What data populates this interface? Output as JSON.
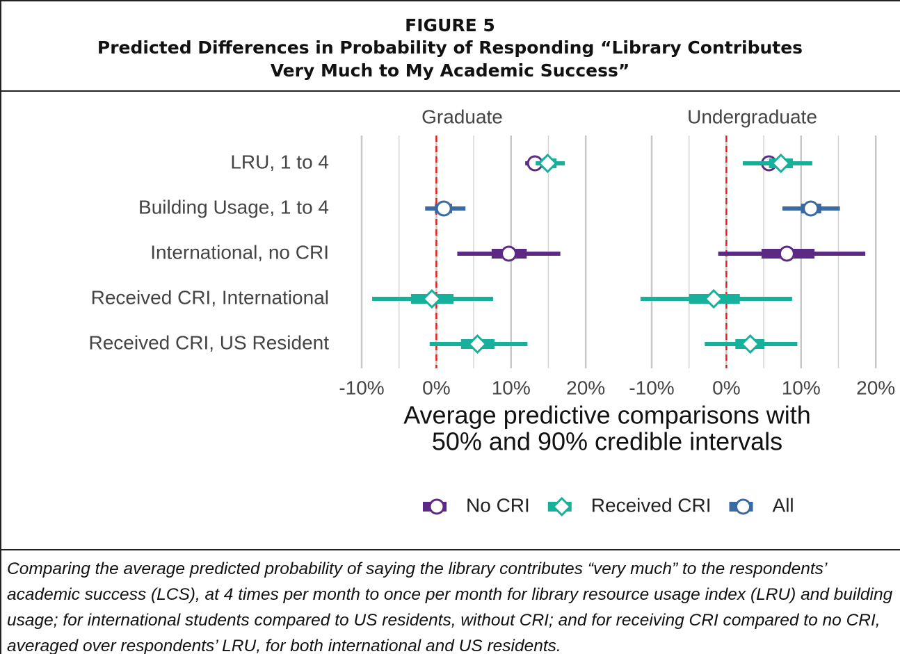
{
  "header": {
    "figure": "FIGURE 5",
    "title_lines": [
      "Predicted Differences in Probability of Responding “Library Contributes",
      "Very Much to My Academic Success”"
    ]
  },
  "chart_data": {
    "type": "interval",
    "categories": [
      "LRU, 1 to 4",
      "Building Usage, 1 to 4",
      "International, no CRI",
      "Received CRI, International",
      "Received CRI, US Resident"
    ],
    "series": [
      {
        "name": "No CRI",
        "color": "#5c2a84",
        "marker": "circle"
      },
      {
        "name": "Received CRI",
        "color": "#17b09a",
        "marker": "diamond"
      },
      {
        "name": "All",
        "color": "#3a6aa3",
        "marker": "circle"
      }
    ],
    "xlim": [
      -10,
      22.5
    ],
    "xticks": [
      {
        "value": -10,
        "label": "-10%"
      },
      {
        "value": 0,
        "label": "0%"
      },
      {
        "value": 10,
        "label": "10%"
      },
      {
        "value": 20,
        "label": "20%"
      }
    ],
    "xminorticks": [
      -5,
      5,
      15
    ],
    "grid": true,
    "reference_line": {
      "value": 0,
      "color": "#e8201f"
    },
    "xlabel_lines": [
      "Average predictive comparisons with",
      "50% and 90% credible intervals"
    ],
    "legend": "bottom",
    "panels": [
      {
        "title": "Graduate",
        "series": [
          {
            "values": [
              13.2,
              null,
              9.7,
              null,
              null
            ],
            "ci50_low": [
              12.4,
              null,
              7.4,
              null,
              null
            ],
            "ci50_high": [
              13.9,
              null,
              12.1,
              null,
              null
            ],
            "ci90_low": [
              11.9,
              null,
              2.8,
              null,
              null
            ],
            "ci90_high": [
              14.2,
              null,
              16.6,
              null,
              null
            ]
          },
          {
            "values": [
              14.9,
              null,
              null,
              -0.6,
              5.5
            ],
            "ci50_low": [
              14.0,
              null,
              null,
              -3.4,
              3.3
            ],
            "ci50_high": [
              16.1,
              null,
              null,
              2.3,
              7.8
            ],
            "ci90_low": [
              13.3,
              null,
              null,
              -8.6,
              -0.9
            ],
            "ci90_high": [
              17.2,
              null,
              null,
              7.6,
              12.2
            ]
          },
          {
            "values": [
              null,
              1.0,
              null,
              null,
              null
            ],
            "ci50_low": [
              null,
              -0.2,
              null,
              null,
              null
            ],
            "ci50_high": [
              null,
              2.1,
              null,
              null,
              null
            ],
            "ci90_low": [
              null,
              -1.5,
              null,
              null,
              null
            ],
            "ci90_high": [
              null,
              3.9,
              null,
              null,
              null
            ]
          }
        ]
      },
      {
        "title": "Undergraduate",
        "series": [
          {
            "values": [
              5.7,
              null,
              8.1,
              null,
              null
            ],
            "ci50_low": [
              5.2,
              null,
              4.7,
              null,
              null
            ],
            "ci50_high": [
              6.8,
              null,
              11.8,
              null,
              null
            ],
            "ci90_low": [
              4.7,
              null,
              -1.1,
              null,
              null
            ],
            "ci90_high": [
              9.0,
              null,
              18.6,
              null,
              null
            ]
          },
          {
            "values": [
              7.3,
              null,
              null,
              -1.7,
              3.2
            ],
            "ci50_low": [
              5.7,
              null,
              null,
              -5.0,
              1.2
            ],
            "ci50_high": [
              8.9,
              null,
              null,
              1.8,
              5.1
            ],
            "ci90_low": [
              2.2,
              null,
              null,
              -11.5,
              -2.9
            ],
            "ci90_high": [
              11.5,
              null,
              null,
              8.8,
              9.5
            ]
          },
          {
            "values": [
              null,
              11.3,
              null,
              null,
              null
            ],
            "ci50_low": [
              null,
              10.0,
              null,
              null,
              null
            ],
            "ci50_high": [
              null,
              12.7,
              null,
              null,
              null
            ],
            "ci90_low": [
              null,
              7.5,
              null,
              null,
              null
            ],
            "ci90_high": [
              null,
              15.2,
              null,
              null,
              null
            ]
          }
        ]
      }
    ]
  },
  "caption": "Comparing the average predicted probability of saying the library contributes “very much” to the respondents’ academic success (LCS), at 4 times per month to once per month for library resource usage index (LRU) and building usage; for international students compared to US residents, without CRI; and for receiving CRI compared to no CRI, averaged over respondents’ LRU, for both international and US residents."
}
